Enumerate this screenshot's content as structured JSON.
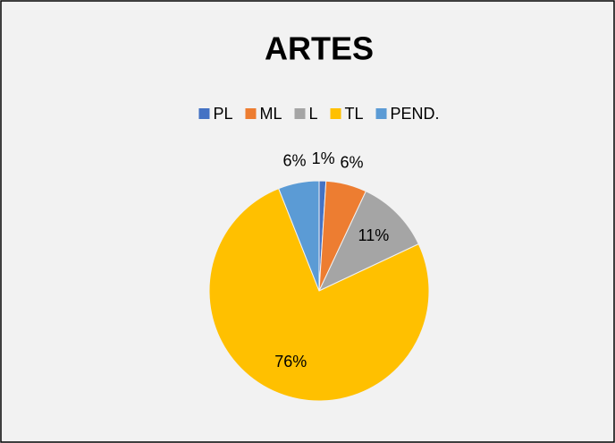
{
  "chart_data": {
    "type": "pie",
    "title": "ARTES",
    "categories": [
      "PL",
      "ML",
      "L",
      "TL",
      "PEND."
    ],
    "values": [
      1,
      6,
      11,
      76,
      6
    ],
    "value_labels": [
      "1%",
      "6%",
      "11%",
      "76%",
      "6%"
    ],
    "colors": [
      "#4472c4",
      "#ed7d31",
      "#a5a5a5",
      "#ffc000",
      "#5b9bd5"
    ],
    "legend": "top"
  }
}
